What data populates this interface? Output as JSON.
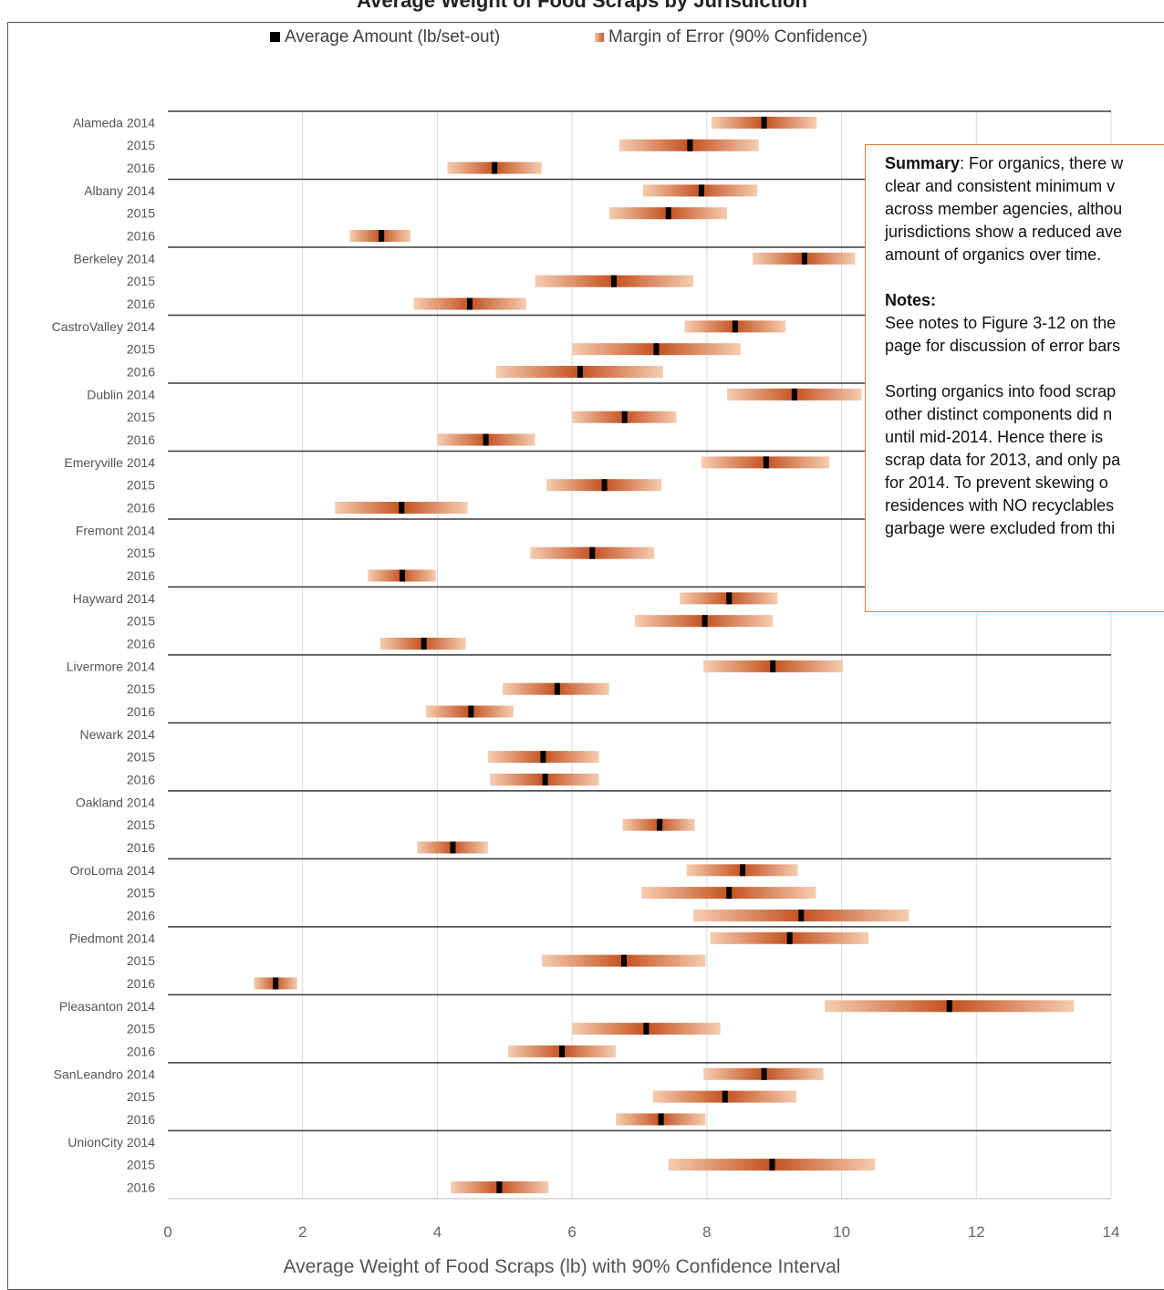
{
  "chart_data": {
    "type": "error-bar",
    "title": "Average Weight of Food Scraps by Jurisdiction",
    "xlabel": "Average Weight of Food Scraps (lb) with 90% Confidence Interval",
    "ylabel": "",
    "xlim": [
      0,
      14
    ],
    "xticks": [
      0,
      2,
      4,
      6,
      8,
      10,
      12,
      14
    ],
    "grid": true,
    "legend_position": "top",
    "legend": {
      "average": "Average Amount (lb/set-out)",
      "margin": "Margin of Error (90% Confidence)"
    },
    "groups": [
      {
        "name": "Alameda",
        "rows": [
          {
            "year": "2014",
            "avg": 8.85,
            "low": 8.07,
            "high": 9.63
          },
          {
            "year": "2015",
            "avg": 7.75,
            "low": 6.7,
            "high": 8.77
          },
          {
            "year": "2016",
            "avg": 4.85,
            "low": 4.15,
            "high": 5.55
          }
        ]
      },
      {
        "name": "Albany",
        "rows": [
          {
            "year": "2014",
            "avg": 7.92,
            "low": 7.05,
            "high": 8.75
          },
          {
            "year": "2015",
            "avg": 7.43,
            "low": 6.55,
            "high": 8.3
          },
          {
            "year": "2016",
            "avg": 3.17,
            "low": 2.7,
            "high": 3.6
          }
        ]
      },
      {
        "name": "Berkeley",
        "rows": [
          {
            "year": "2014",
            "avg": 9.45,
            "low": 8.68,
            "high": 10.2
          },
          {
            "year": "2015",
            "avg": 6.62,
            "low": 5.45,
            "high": 7.8
          },
          {
            "year": "2016",
            "avg": 4.48,
            "low": 3.65,
            "high": 5.32
          }
        ]
      },
      {
        "name": "CastroValley",
        "rows": [
          {
            "year": "2014",
            "avg": 8.42,
            "low": 7.67,
            "high": 9.17
          },
          {
            "year": "2015",
            "avg": 7.25,
            "low": 6.0,
            "high": 8.5
          },
          {
            "year": "2016",
            "avg": 6.12,
            "low": 4.87,
            "high": 7.35
          }
        ]
      },
      {
        "name": "Dublin",
        "rows": [
          {
            "year": "2014",
            "avg": 9.3,
            "low": 8.3,
            "high": 10.3
          },
          {
            "year": "2015",
            "avg": 6.78,
            "low": 6.0,
            "high": 7.55
          },
          {
            "year": "2016",
            "avg": 4.72,
            "low": 4.0,
            "high": 5.45
          }
        ]
      },
      {
        "name": "Emeryville",
        "rows": [
          {
            "year": "2014",
            "avg": 8.88,
            "low": 7.92,
            "high": 9.82
          },
          {
            "year": "2015",
            "avg": 6.48,
            "low": 5.62,
            "high": 7.33
          }
        ]
      },
      {
        "name": "Emeryville-2016",
        "rows": [
          {
            "year": "2016",
            "avg": 3.47,
            "low": 2.48,
            "high": 4.45
          }
        ]
      },
      {
        "name": "Fremont",
        "rows": [
          {
            "year": "2014",
            "avg": null,
            "low": null,
            "high": null
          },
          {
            "year": "2015",
            "avg": 6.3,
            "low": 5.38,
            "high": 7.22
          },
          {
            "year": "2016",
            "avg": 3.48,
            "low": 2.97,
            "high": 3.98
          }
        ]
      },
      {
        "name": "Hayward",
        "rows": [
          {
            "year": "2014",
            "avg": 8.33,
            "low": 7.6,
            "high": 9.05
          },
          {
            "year": "2015",
            "avg": 7.97,
            "low": 6.93,
            "high": 8.98
          },
          {
            "year": "2016",
            "avg": 3.8,
            "low": 3.15,
            "high": 4.42
          }
        ]
      },
      {
        "name": "Livermore",
        "rows": [
          {
            "year": "2014",
            "avg": 8.98,
            "low": 7.95,
            "high": 10.02
          },
          {
            "year": "2015",
            "avg": 5.78,
            "low": 4.97,
            "high": 6.55
          },
          {
            "year": "2016",
            "avg": 4.5,
            "low": 3.83,
            "high": 5.13
          }
        ]
      },
      {
        "name": "Newark",
        "rows": [
          {
            "year": "2014",
            "avg": null,
            "low": null,
            "high": null
          },
          {
            "year": "2015",
            "avg": 5.57,
            "low": 4.75,
            "high": 6.4
          },
          {
            "year": "2016",
            "avg": 5.6,
            "low": 4.78,
            "high": 6.4
          }
        ]
      },
      {
        "name": "Oakland",
        "rows": [
          {
            "year": "2014",
            "avg": null,
            "low": null,
            "high": null
          },
          {
            "year": "2015",
            "avg": 7.3,
            "low": 6.75,
            "high": 7.82
          },
          {
            "year": "2016",
            "avg": 4.23,
            "low": 3.7,
            "high": 4.75
          }
        ]
      },
      {
        "name": "OroLoma",
        "rows": [
          {
            "year": "2014",
            "avg": 8.53,
            "low": 7.7,
            "high": 9.35
          },
          {
            "year": "2015",
            "avg": 8.33,
            "low": 7.03,
            "high": 9.62
          },
          {
            "year": "2016",
            "avg": 9.4,
            "low": 7.8,
            "high": 11.0
          }
        ]
      },
      {
        "name": "Piedmont",
        "rows": [
          {
            "year": "2014",
            "avg": 9.23,
            "low": 8.05,
            "high": 10.4
          },
          {
            "year": "2015",
            "avg": 6.77,
            "low": 5.55,
            "high": 7.98
          },
          {
            "year": "2016",
            "avg": 1.6,
            "low": 1.28,
            "high": 1.92
          }
        ]
      },
      {
        "name": "Pleasanton",
        "rows": [
          {
            "year": "2014",
            "avg": 11.6,
            "low": 9.75,
            "high": 13.45
          },
          {
            "year": "2015",
            "avg": 7.1,
            "low": 6.0,
            "high": 8.2
          },
          {
            "year": "2016",
            "avg": 5.85,
            "low": 5.05,
            "high": 6.65
          }
        ]
      },
      {
        "name": "SanLeandro",
        "rows": [
          {
            "year": "2014",
            "avg": 8.85,
            "low": 7.95,
            "high": 9.73
          },
          {
            "year": "2015",
            "avg": 8.27,
            "low": 7.2,
            "high": 9.33
          },
          {
            "year": "2016",
            "avg": 7.32,
            "low": 6.65,
            "high": 7.98
          }
        ]
      },
      {
        "name": "UnionCity",
        "rows": [
          {
            "year": "2014",
            "avg": null,
            "low": null,
            "high": null
          },
          {
            "year": "2015",
            "avg": 8.97,
            "low": 7.43,
            "high": 10.5
          },
          {
            "year": "2016",
            "avg": 4.92,
            "low": 4.2,
            "high": 5.65
          }
        ]
      }
    ]
  },
  "note": {
    "summary_label": "Summary",
    "summary_lines": [
      ": For organics, there w",
      "clear and consistent minimum v",
      "across member agencies, althou",
      "jurisdictions show a reduced ave",
      "amount of organics over time."
    ],
    "notes_label": "Notes:",
    "notes_lines_a": [
      "See notes to Figure 3-12 on the",
      "page for discussion of error bars"
    ],
    "notes_lines_b": [
      "Sorting organics into food scrap",
      "other distinct components did n",
      "until mid-2014.  Hence there is",
      "scrap data for 2013, and only pa",
      "for 2014.  To prevent skewing o",
      "residences with NO recyclables",
      "garbage were excluded from thi"
    ]
  },
  "colors": {
    "avg_marker": "#000000",
    "bar_outer": "#f5cdb1",
    "bar_center": "#c4511f",
    "box_border": "#ed7d31"
  }
}
